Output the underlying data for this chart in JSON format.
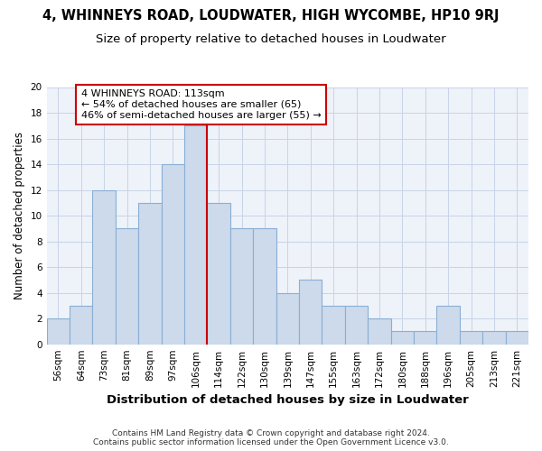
{
  "title1": "4, WHINNEYS ROAD, LOUDWATER, HIGH WYCOMBE, HP10 9RJ",
  "title2": "Size of property relative to detached houses in Loudwater",
  "xlabel": "Distribution of detached houses by size in Loudwater",
  "ylabel": "Number of detached properties",
  "footnote": "Contains HM Land Registry data © Crown copyright and database right 2024.\nContains public sector information licensed under the Open Government Licence v3.0.",
  "bar_labels": [
    "56sqm",
    "64sqm",
    "73sqm",
    "81sqm",
    "89sqm",
    "97sqm",
    "106sqm",
    "114sqm",
    "122sqm",
    "130sqm",
    "139sqm",
    "147sqm",
    "155sqm",
    "163sqm",
    "172sqm",
    "180sqm",
    "188sqm",
    "196sqm",
    "205sqm",
    "213sqm",
    "221sqm"
  ],
  "bar_values": [
    2,
    3,
    12,
    9,
    11,
    14,
    17,
    11,
    9,
    9,
    4,
    5,
    3,
    3,
    2,
    1,
    1,
    3,
    1,
    1,
    1
  ],
  "bar_color": "#ccdaeb",
  "bar_edge_color": "#8aafd4",
  "vline_color": "#cc0000",
  "vline_index": 7,
  "annotation_text": "4 WHINNEYS ROAD: 113sqm\n← 54% of detached houses are smaller (65)\n46% of semi-detached houses are larger (55) →",
  "annotation_box_color": "#ffffff",
  "annotation_box_edge": "#cc0000",
  "ylim": [
    0,
    20
  ],
  "yticks": [
    0,
    2,
    4,
    6,
    8,
    10,
    12,
    14,
    16,
    18,
    20
  ],
  "grid_color": "#c8d4e8",
  "background_color": "#eef2f9",
  "title1_fontsize": 10.5,
  "title2_fontsize": 9.5,
  "xlabel_fontsize": 9.5,
  "ylabel_fontsize": 8.5,
  "tick_fontsize": 7.5,
  "annotation_fontsize": 8,
  "footnote_fontsize": 6.5
}
